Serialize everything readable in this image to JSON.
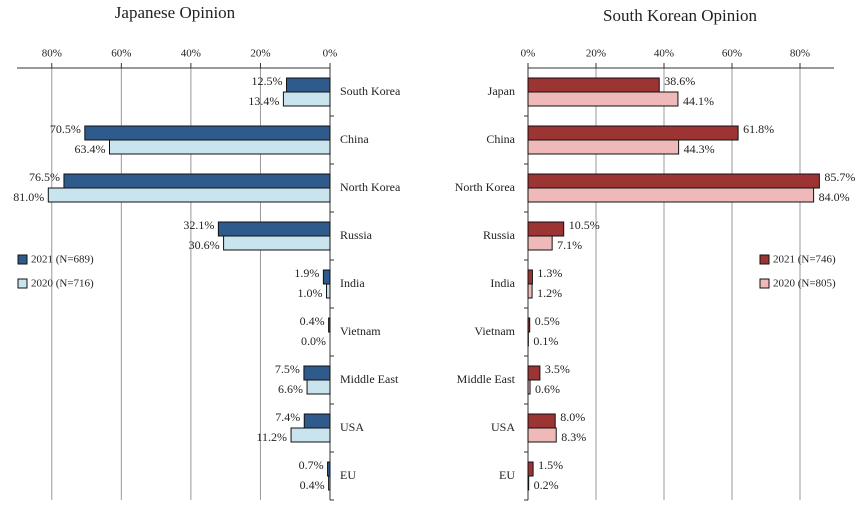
{
  "chart_data": [
    {
      "type": "bar",
      "title": "Japanese Opinion",
      "orientation": "horizontal",
      "x_reversed": true,
      "categories": [
        "South Korea",
        "China",
        "North Korea",
        "Russia",
        "India",
        "Vietnam",
        "Middle East",
        "USA",
        "EU"
      ],
      "series": [
        {
          "name": "2021 (N=689)",
          "color": "#2f5b8c",
          "values": [
            12.5,
            70.5,
            76.5,
            32.1,
            1.9,
            0.4,
            7.5,
            7.4,
            0.7
          ],
          "value_labels": [
            "12.5%",
            "70.5%",
            "76.5%",
            "32.1%",
            "1.9%",
            "0.4%",
            "7.5%",
            "7.4%",
            "0.7%"
          ]
        },
        {
          "name": "2020 (N=716)",
          "color": "#c8e4ef",
          "values": [
            13.4,
            63.4,
            81.0,
            30.6,
            1.0,
            0.0,
            6.6,
            11.2,
            0.4
          ],
          "value_labels": [
            "13.4%",
            "63.4%",
            "81.0%",
            "30.6%",
            "1.0%",
            "0.0%",
            "6.6%",
            "11.2%",
            "0.4%"
          ]
        }
      ],
      "xlim": [
        0,
        90
      ],
      "xticks": [
        {
          "value": 80,
          "label": "80%"
        },
        {
          "value": 60,
          "label": "60%"
        },
        {
          "value": 40,
          "label": "40%"
        },
        {
          "value": 20,
          "label": "20%"
        },
        {
          "value": 0,
          "label": "0%"
        }
      ],
      "grid": true,
      "legend": "center left"
    },
    {
      "type": "bar",
      "title": "South Korean Opinion",
      "orientation": "horizontal",
      "x_reversed": false,
      "categories": [
        "Japan",
        "China",
        "North Korea",
        "Russia",
        "India",
        "Vietnam",
        "Middle East",
        "USA",
        "EU"
      ],
      "series": [
        {
          "name": "2021 (N=746)",
          "color": "#9c3434",
          "values": [
            38.6,
            61.8,
            85.7,
            10.5,
            1.3,
            0.5,
            3.5,
            8.0,
            1.5
          ],
          "value_labels": [
            "38.6%",
            "61.8%",
            "85.7%",
            "10.5%",
            "1.3%",
            "0.5%",
            "3.5%",
            "8.0%",
            "1.5%"
          ]
        },
        {
          "name": "2020 (N=805)",
          "color": "#f0b9b9",
          "values": [
            44.1,
            44.3,
            84.0,
            7.1,
            1.2,
            0.1,
            0.6,
            8.3,
            0.2
          ],
          "value_labels": [
            "44.1%",
            "44.3%",
            "84.0%",
            "7.1%",
            "1.2%",
            "0.1%",
            "0.6%",
            "8.3%",
            "0.2%"
          ]
        }
      ],
      "xlim": [
        0,
        90
      ],
      "xticks": [
        {
          "value": 0,
          "label": "0%"
        },
        {
          "value": 20,
          "label": "20%"
        },
        {
          "value": 40,
          "label": "40%"
        },
        {
          "value": 60,
          "label": "60%"
        },
        {
          "value": 80,
          "label": "80%"
        }
      ],
      "grid": true,
      "legend": "center right"
    }
  ]
}
